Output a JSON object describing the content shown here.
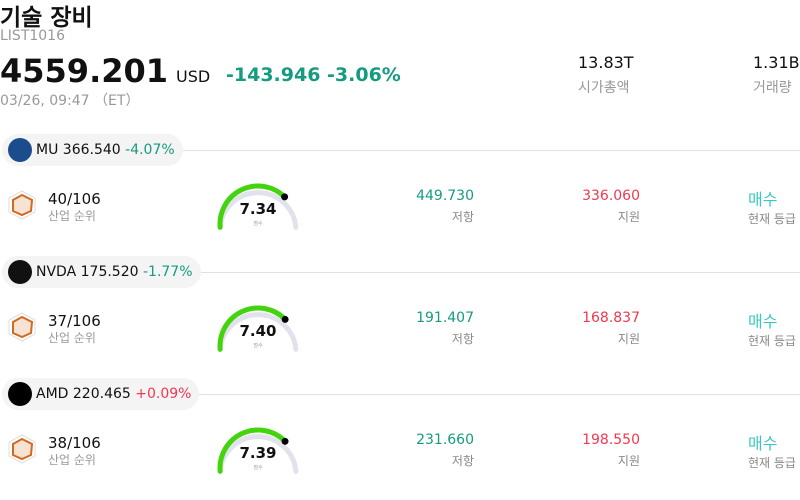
{
  "header": {
    "title": "기술 장비",
    "code": "LIST1016",
    "price": "4559.201",
    "currency": "USD",
    "change": "-143.946 -3.06%",
    "time": "03/26, 09:47 （ET）",
    "market_cap": {
      "value": "13.83T",
      "label": "시가총액"
    },
    "volume": {
      "value": "1.31B",
      "label": "거래량"
    }
  },
  "colors": {
    "down": "#159b80",
    "up": "#f0384f",
    "gauge": "#44d40e",
    "rating": "#3cc8c0"
  },
  "rows": [
    {
      "ticker": "MU",
      "price": "366.540",
      "change": "-4.07%",
      "dir": "down",
      "logo_text": "MICRON",
      "logo_color": "#1b4c8c",
      "rank": "40/106",
      "rank_label": "산업 순위",
      "score": 7.34,
      "score_text": "7.34",
      "score_label": "점수",
      "resistance": "449.730",
      "resistance_label": "저항",
      "support": "336.060",
      "support_label": "지원",
      "rating": "매수",
      "rating_label": "현재 등급"
    },
    {
      "ticker": "NVDA",
      "price": "175.520",
      "change": "-1.77%",
      "dir": "down",
      "logo_text": "NVIDIA",
      "logo_color": "#111111",
      "rank": "37/106",
      "rank_label": "산업 순위",
      "score": 7.4,
      "score_text": "7.40",
      "score_label": "점수",
      "resistance": "191.407",
      "resistance_label": "저항",
      "support": "168.837",
      "support_label": "지원",
      "rating": "매수",
      "rating_label": "현재 등급"
    },
    {
      "ticker": "AMD",
      "price": "220.465",
      "change": "+0.09%",
      "dir": "up",
      "logo_text": "AMD",
      "logo_color": "#000000",
      "rank": "38/106",
      "rank_label": "산업 순위",
      "score": 7.39,
      "score_text": "7.39",
      "score_label": "점수",
      "resistance": "231.660",
      "resistance_label": "저항",
      "support": "198.550",
      "support_label": "지원",
      "rating": "매수",
      "rating_label": "현재 등급"
    }
  ]
}
